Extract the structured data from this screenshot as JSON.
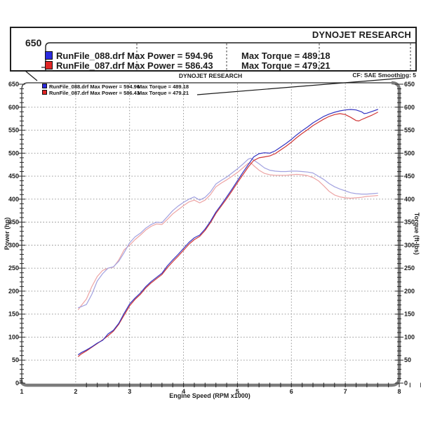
{
  "magnifier": {
    "header": "DYNOJET RESEARCH",
    "axis_tick_label": "650",
    "rows": [
      {
        "swatch_color": "#2b2bdf",
        "file": "RunFile_088.drf",
        "power_label": "Max Power = 594.96",
        "torque_label": "Max Torque = 489.18"
      },
      {
        "swatch_color": "#e02525",
        "file": "RunFile_087.drf",
        "power_label": "Max Power = 586.43",
        "torque_label": "Max Torque = 479.21"
      }
    ]
  },
  "chart": {
    "title": "DYNOJET RESEARCH",
    "correction_text": "CF: SAE  Smoothing: 5"
  },
  "chart_data": {
    "type": "line",
    "title": "DYNOJET RESEARCH",
    "xlabel": "Engine Speed (RPM x1000)",
    "ylabel_left": "Power (hp)",
    "ylabel_right": "Torque (ft-lbs)",
    "xlim": [
      1,
      8
    ],
    "ylim": [
      0,
      650
    ],
    "x_ticks": [
      1,
      2,
      3,
      4,
      5,
      6,
      7,
      8
    ],
    "y_ticks": [
      0,
      50,
      100,
      150,
      200,
      250,
      300,
      350,
      400,
      450,
      500,
      550,
      600,
      650
    ],
    "y_minor_step": 10,
    "x_minor_step": 0.2,
    "grid": true,
    "legend_position": "top-left",
    "colors": {
      "power_088": "#3434c2",
      "power_087": "#d03636",
      "torque_088": "#a2a2e0",
      "torque_087": "#eda4a4",
      "grid": "#8f8f8f",
      "frame": "#7c7c7c",
      "axis": "#2a2a2a"
    },
    "legend_rows": [
      {
        "swatch_color": "#2b2bdf",
        "label": "RunFile_088.drf Max Power = 594.96",
        "torque": "Max Torque = 489.18"
      },
      {
        "swatch_color": "#e02525",
        "label": "RunFile_087.drf Max Power = 586.43",
        "torque": "Max Torque = 479.21"
      }
    ],
    "max_values": {
      "power_088": 594.96,
      "power_087": 586.43,
      "torque_088": 489.18,
      "torque_087": 479.21
    },
    "series": [
      {
        "name": "RunFile_087 Torque (ft-lbs)",
        "color_key": "torque_087",
        "axis": "right",
        "points": [
          [
            2.05,
            160
          ],
          [
            2.1,
            168
          ],
          [
            2.2,
            183
          ],
          [
            2.3,
            210
          ],
          [
            2.4,
            232
          ],
          [
            2.5,
            245
          ],
          [
            2.6,
            250
          ],
          [
            2.7,
            252
          ],
          [
            2.8,
            268
          ],
          [
            2.9,
            290
          ],
          [
            3.0,
            300
          ],
          [
            3.1,
            312
          ],
          [
            3.2,
            322
          ],
          [
            3.3,
            333
          ],
          [
            3.4,
            341
          ],
          [
            3.5,
            346
          ],
          [
            3.6,
            345
          ],
          [
            3.7,
            356
          ],
          [
            3.8,
            368
          ],
          [
            3.9,
            377
          ],
          [
            4.0,
            386
          ],
          [
            4.1,
            394
          ],
          [
            4.2,
            398
          ],
          [
            4.3,
            392
          ],
          [
            4.4,
            398
          ],
          [
            4.5,
            410
          ],
          [
            4.6,
            427
          ],
          [
            4.7,
            435
          ],
          [
            4.8,
            442
          ],
          [
            4.9,
            450
          ],
          [
            5.0,
            458
          ],
          [
            5.1,
            468
          ],
          [
            5.2,
            478
          ],
          [
            5.25,
            479
          ],
          [
            5.3,
            473
          ],
          [
            5.4,
            463
          ],
          [
            5.5,
            456
          ],
          [
            5.6,
            453
          ],
          [
            5.7,
            452
          ],
          [
            5.8,
            452
          ],
          [
            5.9,
            452
          ],
          [
            6.0,
            453
          ],
          [
            6.1,
            454
          ],
          [
            6.2,
            453
          ],
          [
            6.3,
            451
          ],
          [
            6.4,
            447
          ],
          [
            6.5,
            440
          ],
          [
            6.6,
            429
          ],
          [
            6.7,
            417
          ],
          [
            6.8,
            409
          ],
          [
            6.9,
            405
          ],
          [
            7.0,
            403
          ],
          [
            7.1,
            402
          ],
          [
            7.2,
            403
          ],
          [
            7.3,
            404
          ],
          [
            7.4,
            406
          ],
          [
            7.5,
            407
          ],
          [
            7.6,
            408
          ]
        ]
      },
      {
        "name": "RunFile_088 Torque (ft-lbs)",
        "color_key": "torque_088",
        "axis": "right",
        "points": [
          [
            2.05,
            164
          ],
          [
            2.1,
            166
          ],
          [
            2.2,
            171
          ],
          [
            2.3,
            193
          ],
          [
            2.4,
            222
          ],
          [
            2.5,
            238
          ],
          [
            2.6,
            250
          ],
          [
            2.7,
            253
          ],
          [
            2.8,
            265
          ],
          [
            2.9,
            284
          ],
          [
            3.0,
            305
          ],
          [
            3.1,
            318
          ],
          [
            3.2,
            326
          ],
          [
            3.3,
            337
          ],
          [
            3.4,
            345
          ],
          [
            3.5,
            350
          ],
          [
            3.6,
            349
          ],
          [
            3.7,
            362
          ],
          [
            3.8,
            375
          ],
          [
            3.9,
            385
          ],
          [
            4.0,
            393
          ],
          [
            4.1,
            400
          ],
          [
            4.2,
            405
          ],
          [
            4.3,
            398
          ],
          [
            4.4,
            404
          ],
          [
            4.5,
            416
          ],
          [
            4.6,
            433
          ],
          [
            4.7,
            441
          ],
          [
            4.8,
            448
          ],
          [
            4.9,
            457
          ],
          [
            5.0,
            466
          ],
          [
            5.1,
            476
          ],
          [
            5.2,
            487
          ],
          [
            5.25,
            489
          ],
          [
            5.3,
            485
          ],
          [
            5.4,
            477
          ],
          [
            5.5,
            468
          ],
          [
            5.6,
            463
          ],
          [
            5.7,
            461
          ],
          [
            5.8,
            460
          ],
          [
            5.9,
            460
          ],
          [
            6.0,
            461
          ],
          [
            6.1,
            461
          ],
          [
            6.2,
            460
          ],
          [
            6.3,
            459
          ],
          [
            6.4,
            457
          ],
          [
            6.5,
            450
          ],
          [
            6.6,
            443
          ],
          [
            6.7,
            434
          ],
          [
            6.8,
            427
          ],
          [
            6.9,
            422
          ],
          [
            7.0,
            418
          ],
          [
            7.1,
            414
          ],
          [
            7.2,
            412
          ],
          [
            7.3,
            411
          ],
          [
            7.4,
            411
          ],
          [
            7.5,
            412
          ],
          [
            7.6,
            413
          ]
        ]
      },
      {
        "name": "RunFile_087 Power (hp)",
        "color_key": "power_087",
        "axis": "left",
        "points": [
          [
            2.05,
            58
          ],
          [
            2.1,
            63
          ],
          [
            2.2,
            70
          ],
          [
            2.3,
            78
          ],
          [
            2.4,
            86
          ],
          [
            2.5,
            94
          ],
          [
            2.6,
            103
          ],
          [
            2.7,
            113
          ],
          [
            2.8,
            128
          ],
          [
            2.9,
            148
          ],
          [
            3.0,
            168
          ],
          [
            3.1,
            182
          ],
          [
            3.2,
            193
          ],
          [
            3.3,
            207
          ],
          [
            3.4,
            218
          ],
          [
            3.5,
            227
          ],
          [
            3.6,
            236
          ],
          [
            3.7,
            251
          ],
          [
            3.8,
            264
          ],
          [
            3.9,
            276
          ],
          [
            4.0,
            289
          ],
          [
            4.1,
            302
          ],
          [
            4.2,
            312
          ],
          [
            4.3,
            319
          ],
          [
            4.4,
            332
          ],
          [
            4.5,
            349
          ],
          [
            4.6,
            369
          ],
          [
            4.7,
            385
          ],
          [
            4.8,
            401
          ],
          [
            4.9,
            418
          ],
          [
            5.0,
            436
          ],
          [
            5.1,
            453
          ],
          [
            5.2,
            470
          ],
          [
            5.3,
            484
          ],
          [
            5.4,
            490
          ],
          [
            5.5,
            492
          ],
          [
            5.6,
            494
          ],
          [
            5.7,
            499
          ],
          [
            5.8,
            507
          ],
          [
            5.9,
            515
          ],
          [
            6.0,
            524
          ],
          [
            6.1,
            534
          ],
          [
            6.2,
            543
          ],
          [
            6.3,
            551
          ],
          [
            6.4,
            560
          ],
          [
            6.5,
            567
          ],
          [
            6.6,
            574
          ],
          [
            6.7,
            580
          ],
          [
            6.8,
            584
          ],
          [
            6.9,
            586
          ],
          [
            7.0,
            584
          ],
          [
            7.1,
            578
          ],
          [
            7.2,
            571
          ],
          [
            7.25,
            570
          ],
          [
            7.3,
            573
          ],
          [
            7.4,
            578
          ],
          [
            7.5,
            583
          ],
          [
            7.6,
            589
          ]
        ]
      },
      {
        "name": "RunFile_088 Power (hp)",
        "color_key": "power_088",
        "axis": "left",
        "points": [
          [
            2.05,
            62
          ],
          [
            2.1,
            66
          ],
          [
            2.2,
            72
          ],
          [
            2.3,
            79
          ],
          [
            2.4,
            87
          ],
          [
            2.5,
            93
          ],
          [
            2.6,
            107
          ],
          [
            2.7,
            115
          ],
          [
            2.8,
            130
          ],
          [
            2.9,
            152
          ],
          [
            3.0,
            172
          ],
          [
            3.1,
            185
          ],
          [
            3.2,
            196
          ],
          [
            3.3,
            210
          ],
          [
            3.4,
            221
          ],
          [
            3.5,
            230
          ],
          [
            3.6,
            239
          ],
          [
            3.7,
            255
          ],
          [
            3.8,
            268
          ],
          [
            3.9,
            280
          ],
          [
            4.0,
            293
          ],
          [
            4.1,
            306
          ],
          [
            4.2,
            316
          ],
          [
            4.3,
            322
          ],
          [
            4.4,
            335
          ],
          [
            4.5,
            352
          ],
          [
            4.6,
            372
          ],
          [
            4.7,
            388
          ],
          [
            4.8,
            405
          ],
          [
            4.9,
            422
          ],
          [
            5.0,
            440
          ],
          [
            5.1,
            458
          ],
          [
            5.2,
            475
          ],
          [
            5.3,
            492
          ],
          [
            5.4,
            499
          ],
          [
            5.5,
            501
          ],
          [
            5.6,
            500
          ],
          [
            5.7,
            505
          ],
          [
            5.8,
            513
          ],
          [
            5.9,
            521
          ],
          [
            6.0,
            530
          ],
          [
            6.1,
            540
          ],
          [
            6.2,
            549
          ],
          [
            6.3,
            557
          ],
          [
            6.4,
            566
          ],
          [
            6.5,
            573
          ],
          [
            6.6,
            580
          ],
          [
            6.7,
            585
          ],
          [
            6.8,
            589
          ],
          [
            6.9,
            592
          ],
          [
            7.0,
            594
          ],
          [
            7.1,
            595
          ],
          [
            7.2,
            594
          ],
          [
            7.3,
            590
          ],
          [
            7.35,
            586
          ],
          [
            7.4,
            587
          ],
          [
            7.5,
            591
          ],
          [
            7.6,
            595
          ]
        ]
      }
    ]
  }
}
